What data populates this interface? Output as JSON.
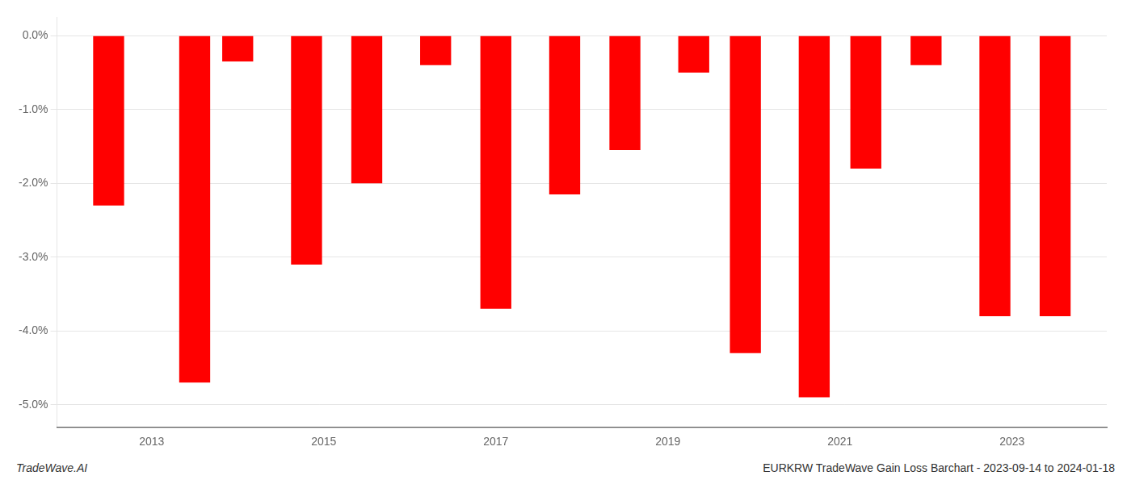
{
  "chart_data": {
    "type": "bar",
    "x": [
      2012.5,
      2013.5,
      2014.0,
      2014.8,
      2015.5,
      2016.3,
      2017.0,
      2017.8,
      2018.5,
      2019.3,
      2019.9,
      2020.7,
      2021.3,
      2022.0,
      2022.8,
      2023.5
    ],
    "values": [
      -2.3,
      -4.7,
      -0.35,
      -3.1,
      -2.0,
      -0.4,
      -3.7,
      -2.15,
      -1.55,
      -0.5,
      -4.3,
      -4.9,
      -1.8,
      -0.4,
      -3.8,
      -3.8
    ],
    "color": "#ff0000",
    "xlim": [
      2011.9,
      2024.1
    ],
    "xticks": [
      2013,
      2015,
      2017,
      2019,
      2021,
      2023
    ],
    "ylim": [
      -5.3,
      0.25
    ],
    "yticks": [
      {
        "value": 0.0,
        "label": "0.0%"
      },
      {
        "value": -1.0,
        "label": "-1.0%"
      },
      {
        "value": -2.0,
        "label": "-2.0%"
      },
      {
        "value": -3.0,
        "label": "-3.0%"
      },
      {
        "value": -4.0,
        "label": "-4.0%"
      },
      {
        "value": -5.0,
        "label": "-5.0%"
      }
    ],
    "grid": true,
    "annotations": [
      "TradeWave.AI",
      "EURKRW TradeWave Gain Loss Barchart - 2023-09-14 to 2024-01-18"
    ]
  }
}
